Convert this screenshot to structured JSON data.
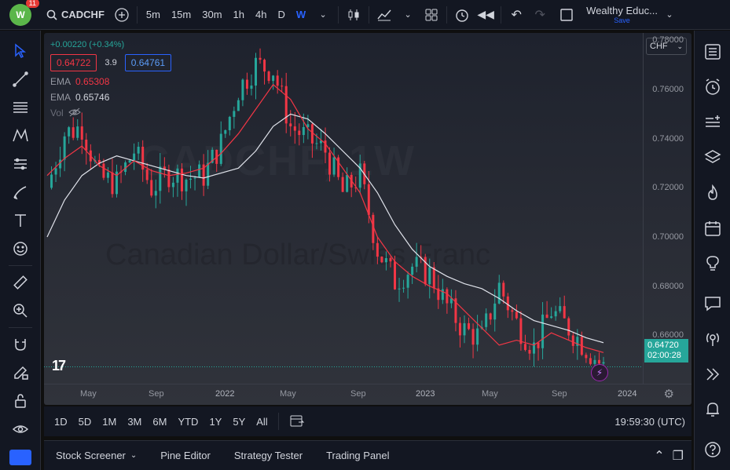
{
  "topbar": {
    "logo_text": "W",
    "notification_count": "11",
    "symbol": "CADCHF",
    "intervals": [
      "5m",
      "15m",
      "30m",
      "1h",
      "4h",
      "D",
      "W"
    ],
    "active_interval": "W",
    "layout_name": "Wealthy Educ...",
    "save_label": "Save"
  },
  "legend": {
    "change": "+0.00220 (+0.34%)",
    "bid": "0.64722",
    "spread": "3.9",
    "ask": "0.64761",
    "ema1_label": "EMA",
    "ema1_value": "0.65308",
    "ema2_label": "EMA",
    "ema2_value": "0.65746",
    "vol_label": "Vol"
  },
  "watermark": {
    "symbol": "CADCHF, 1W",
    "name": "Canadian Dollar/Swiss Franc"
  },
  "price_scale": {
    "currency": "CHF",
    "labels": [
      "0.78000",
      "0.76000",
      "0.74000",
      "0.72000",
      "0.70000",
      "0.68000",
      "0.66000"
    ],
    "current_price": "0.64720",
    "countdown": "02:00:28"
  },
  "time_scale": {
    "labels": [
      "May",
      "Sep",
      "2022",
      "May",
      "Sep",
      "2023",
      "May",
      "Sep",
      "2024"
    ]
  },
  "range_bar": {
    "ranges": [
      "1D",
      "5D",
      "1M",
      "3M",
      "6M",
      "YTD",
      "1Y",
      "5Y",
      "All"
    ],
    "clock": "19:59:30 (UTC)"
  },
  "bottom_panel": {
    "tabs": [
      "Stock Screener",
      "Pine Editor",
      "Strategy Tester",
      "Trading Panel"
    ]
  },
  "colors": {
    "up": "#26a69a",
    "down": "#f23645",
    "ema_fast": "#f23645",
    "ema_slow": "#e0e3eb",
    "accent": "#2962ff"
  },
  "chart_data": {
    "type": "candlestick",
    "symbol": "CADCHF",
    "interval": "1W",
    "ylim": [
      0.64,
      0.783
    ],
    "x_range": [
      "2021-04",
      "2024-01"
    ],
    "series": [
      {
        "name": "EMA",
        "values": [
          0.7,
          0.715,
          0.725,
          0.73,
          0.733,
          0.731,
          0.729,
          0.727,
          0.725,
          0.724,
          0.726,
          0.728,
          0.735,
          0.745,
          0.75,
          0.748,
          0.742,
          0.735,
          0.728,
          0.718,
          0.705,
          0.695,
          0.688,
          0.684,
          0.681,
          0.679,
          0.675,
          0.67,
          0.666,
          0.664,
          0.662,
          0.659,
          0.657
        ]
      },
      {
        "name": "EMA",
        "values": [
          0.725,
          0.732,
          0.737,
          0.729,
          0.725,
          0.731,
          0.727,
          0.725,
          0.726,
          0.728,
          0.734,
          0.742,
          0.752,
          0.762,
          0.756,
          0.744,
          0.738,
          0.728,
          0.718,
          0.7,
          0.69,
          0.684,
          0.68,
          0.677,
          0.67,
          0.663,
          0.656,
          0.658,
          0.656,
          0.661,
          0.658,
          0.655,
          0.653
        ]
      }
    ],
    "close": [
      0.72,
      0.742,
      0.745,
      0.724,
      0.722,
      0.735,
      0.72,
      0.726,
      0.724,
      0.725,
      0.738,
      0.76,
      0.77,
      0.768,
      0.745,
      0.74,
      0.735,
      0.718,
      0.725,
      0.695,
      0.682,
      0.688,
      0.685,
      0.672,
      0.662,
      0.659,
      0.68,
      0.665,
      0.655,
      0.67,
      0.663,
      0.655,
      0.647
    ]
  }
}
